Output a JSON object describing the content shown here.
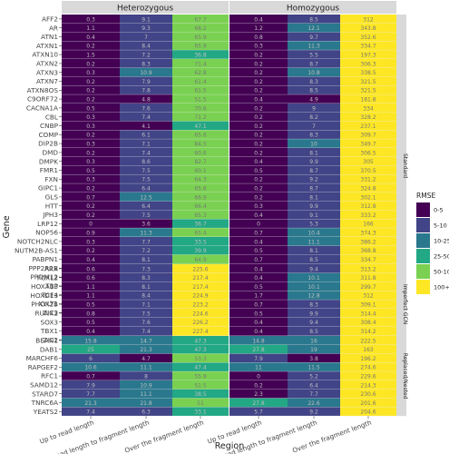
{
  "chart_data": {
    "type": "heatmap",
    "xlabel": "Region",
    "ylabel": "Gene",
    "facet_columns": [
      "Heterozygous",
      "Homozygous"
    ],
    "regions": [
      "Up to read length",
      "Read length to fragment length",
      "Over the fragment length"
    ],
    "legend": {
      "title": "RMSE",
      "bins": [
        "0-5",
        "5-10",
        "10-25",
        "25-50",
        "50-100",
        "100+"
      ],
      "colors": [
        "#440154",
        "#414487",
        "#2a788e",
        "#22a884",
        "#7ad151",
        "#fde725"
      ]
    },
    "panels": [
      {
        "label": "Standard",
        "genes": [
          "AFF2",
          "AR",
          "ATN1",
          "ATXN1",
          "ATXN10",
          "ATXN2",
          "ATXN3",
          "ATXN7",
          "ATXN8OS",
          "C9ORF72",
          "CACNA1A",
          "CBL",
          "CNBP",
          "COMP",
          "DIP2B",
          "DMD",
          "DMPK",
          "FMR1",
          "FXN",
          "GIPC1",
          "GLS",
          "HTT",
          "JPH3",
          "LRP12",
          "NOP56",
          "NOTCH2NLC",
          "NUTM2B-AS1",
          "PABPN1",
          "PPP2R2B",
          "PRDM12",
          "TBP",
          "TCF4",
          "XYLT1",
          "ZIC3"
        ],
        "heterozygous": [
          [
            0.3,
            9.1,
            67.7
          ],
          [
            1.1,
            9.3,
            68.2
          ],
          [
            0.4,
            7,
            65.9
          ],
          [
            0.2,
            8.4,
            65.9
          ],
          [
            1.5,
            7.2,
            36.8
          ],
          [
            0.2,
            8.3,
            71.4
          ],
          [
            0.3,
            10.9,
            62.8
          ],
          [
            0.2,
            7.9,
            61.4
          ],
          [
            0.2,
            7.8,
            61.5
          ],
          [
            0.2,
            4.8,
            51.5
          ],
          [
            0.5,
            7.6,
            70.6
          ],
          [
            0.3,
            7.4,
            71.2
          ],
          [
            0.3,
            4.1,
            47.1
          ],
          [
            0.2,
            6.1,
            65.6
          ],
          [
            0.3,
            7.1,
            84.5
          ],
          [
            0.2,
            7.4,
            60.6
          ],
          [
            0.3,
            8.6,
            82.7
          ],
          [
            0.5,
            7.5,
            60.1
          ],
          [
            0.3,
            7.5,
            64.3
          ],
          [
            0.2,
            6.4,
            65.8
          ],
          [
            0.7,
            12.5,
            66.9
          ],
          [
            0.2,
            6.4,
            66.4
          ],
          [
            0.2,
            7.5,
            65.3
          ],
          [
            0,
            3.6,
            36.7
          ],
          [
            0.9,
            11.3,
            65.4
          ],
          [
            0.3,
            7.7,
            33.5
          ],
          [
            0.2,
            7.2,
            39.9
          ],
          [
            0.4,
            8.1,
            64.9
          ],
          [
            0.2,
            8.1,
            64.8
          ],
          [
            0.3,
            7.5,
            64.3
          ],
          [
            0.2,
            8.3,
            67.2
          ],
          [
            0.2,
            6.7,
            38.7
          ],
          [
            22.2,
            32.8,
            59.2
          ],
          [
            0.2,
            7.3,
            67.1
          ]
        ],
        "homozygous": [
          [
            0.4,
            8.5,
            312
          ],
          [
            1.2,
            12.1,
            343.8
          ],
          [
            0.8,
            9.7,
            352.6
          ],
          [
            0.3,
            11.3,
            334.7
          ],
          [
            0.2,
            5.5,
            197.3
          ],
          [
            0.2,
            8.7,
            306.3
          ],
          [
            0.2,
            10.8,
            338.5
          ],
          [
            0.2,
            8.3,
            321.5
          ],
          [
            0.2,
            8.5,
            321.5
          ],
          [
            0.4,
            4.9,
            181.8
          ],
          [
            0.2,
            9,
            334
          ],
          [
            0.2,
            8.2,
            328.2
          ],
          [
            0.2,
            7,
            237.1
          ],
          [
            0.2,
            8.3,
            309.7
          ],
          [
            0.2,
            10,
            349.7
          ],
          [
            0.2,
            8.1,
            306.5
          ],
          [
            0.4,
            9.9,
            305
          ],
          [
            0.5,
            8.7,
            370.5
          ],
          [
            0.2,
            9.2,
            331.2
          ],
          [
            0.2,
            8.7,
            324.8
          ],
          [
            0.2,
            8.1,
            302.1
          ],
          [
            0.3,
            9.9,
            312.8
          ],
          [
            0.4,
            9.1,
            333.2
          ],
          [
            0,
            5.3,
            166
          ],
          [
            0.7,
            10.4,
            374.3
          ],
          [
            0.4,
            11.1,
            386.2
          ],
          [
            0.5,
            8.1,
            368.8
          ],
          [
            0.7,
            8.5,
            334.7
          ],
          [
            0.3,
            9,
            342.3
          ],
          [
            0.3,
            8.9,
            328.4
          ],
          [
            0.2,
            9.4,
            320.1
          ],
          [
            0.3,
            10.6,
            420.9
          ],
          [
            23.7,
            40,
            321.3
          ],
          [
            1,
            10.8,
            340.5
          ]
        ]
      },
      {
        "label": "Imperfect GCN",
        "genes": [
          "ARX",
          "FOXL2",
          "HOXA13",
          "HOXD13",
          "PHOX2B",
          "RUNX2",
          "SOX3",
          "TBX1",
          "ZIC2"
        ],
        "heterozygous": [
          [
            0.6,
            7.3,
            225.6
          ],
          [
            0.6,
            8.3,
            217.4
          ],
          [
            1.1,
            8.1,
            217.4
          ],
          [
            1.1,
            8.4,
            224.9
          ],
          [
            0.5,
            7.1,
            223.2
          ],
          [
            0.8,
            7.5,
            224.6
          ],
          [
            0.5,
            7.6,
            226.2
          ],
          [
            0.4,
            7.4,
            227.4
          ],
          [
            0.5,
            8,
            226
          ]
        ],
        "homozygous": [
          [
            0.4,
            9.4,
            313.2
          ],
          [
            0.4,
            10.1,
            311.8
          ],
          [
            0.5,
            10.1,
            299.7
          ],
          [
            1.7,
            12.8,
            312
          ],
          [
            0.7,
            8.3,
            309.1
          ],
          [
            0.5,
            9.9,
            314.4
          ],
          [
            0.4,
            9.4,
            308.4
          ],
          [
            0.4,
            8.5,
            314.2
          ],
          [
            0.2,
            8.5,
            315.9
          ]
        ]
      },
      {
        "label": "Replaced/Nested",
        "genes": [
          "BEAN1",
          "DAB1",
          "MARCHF6",
          "RAPGEF2",
          "RFC1",
          "SAMD12",
          "STARD7",
          "TNRC6A",
          "YEATS2"
        ],
        "heterozygous": [
          [
            15.8,
            14.7,
            47.3
          ],
          [
            25,
            21.3,
            47.3
          ],
          [
            6,
            4.7,
            53.3
          ],
          [
            10.6,
            11.1,
            47.4
          ],
          [
            0.7,
            8,
            55.9
          ],
          [
            7.9,
            10.9,
            51.5
          ],
          [
            7.7,
            11.1,
            38.5
          ],
          [
            21.3,
            21.8,
            51
          ],
          [
            7.4,
            6.3,
            33.1
          ]
        ],
        "homozygous": [
          [
            14.8,
            16,
            222.5
          ],
          [
            27.8,
            19,
            163
          ],
          [
            7.9,
            3.8,
            196.2
          ],
          [
            11,
            11.5,
            274.6
          ],
          [
            0,
            5.2,
            229.6
          ],
          [
            0.2,
            6.4,
            214.3
          ],
          [
            2.3,
            7.7,
            230.6
          ],
          [
            27.8,
            22.6,
            201.6
          ],
          [
            5.7,
            9.2,
            204.6
          ]
        ]
      }
    ]
  }
}
